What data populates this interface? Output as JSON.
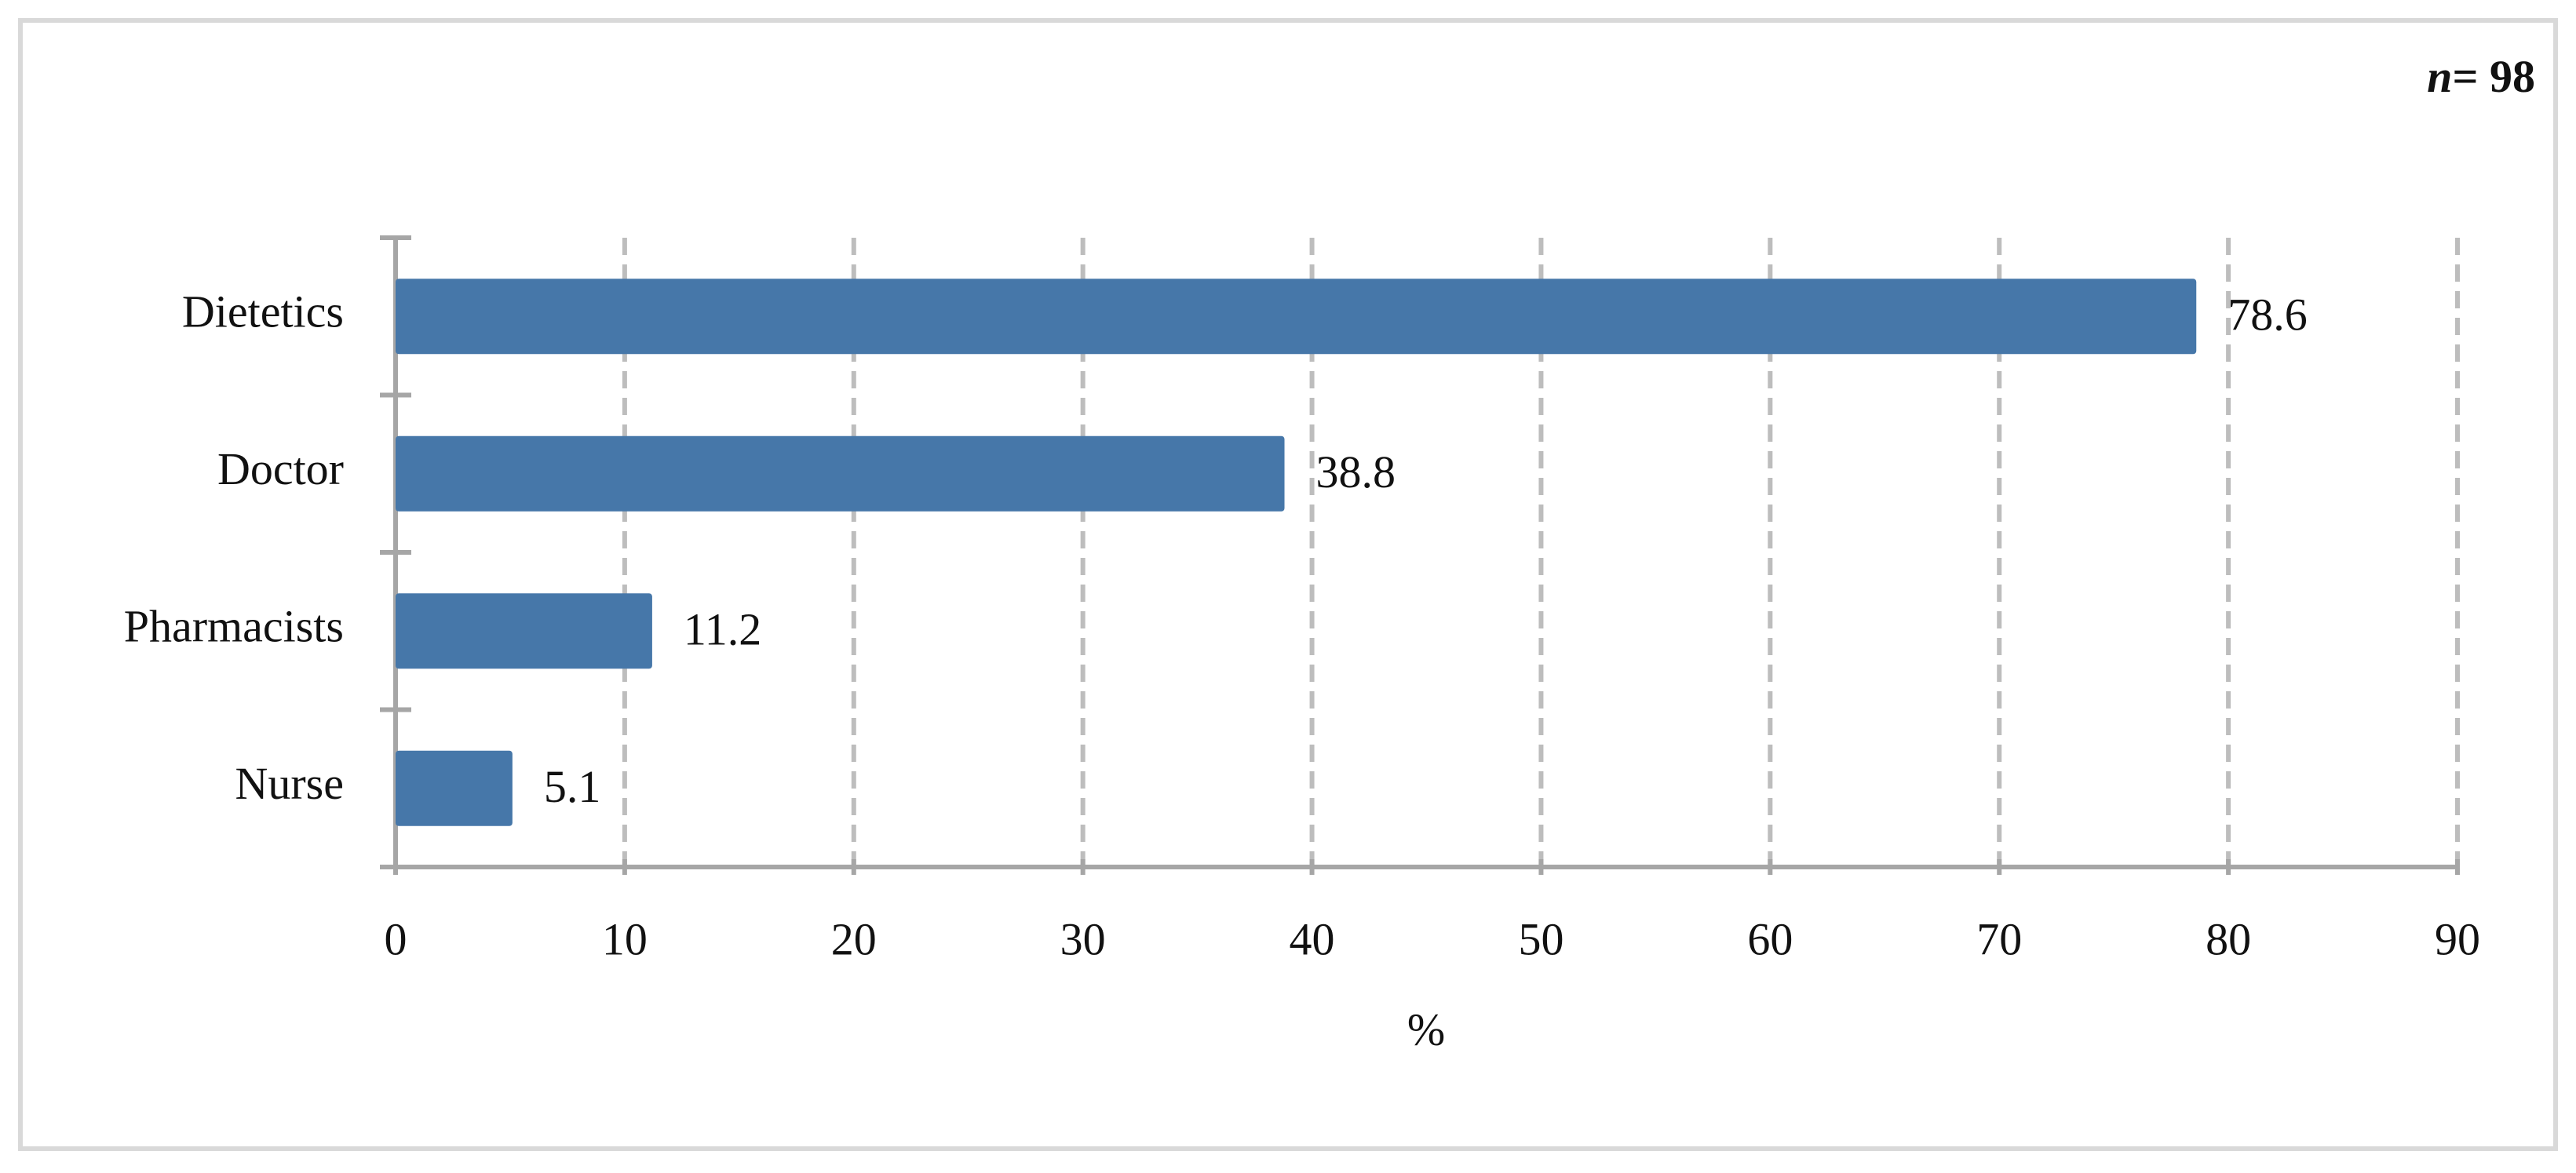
{
  "chart_data": {
    "type": "hbar",
    "annotation": {
      "variable": "n",
      "text": "= 98"
    },
    "categories": [
      "Dietetics",
      "Doctor",
      "Pharmacists",
      "Nurse"
    ],
    "values": [
      78.6,
      38.8,
      11.2,
      5.1
    ],
    "color": "#4677a9",
    "xlabel": "%",
    "xlim": [
      0,
      90
    ],
    "xticks": [
      0,
      10,
      20,
      30,
      40,
      50,
      60,
      70,
      80,
      90
    ],
    "grid": true
  }
}
